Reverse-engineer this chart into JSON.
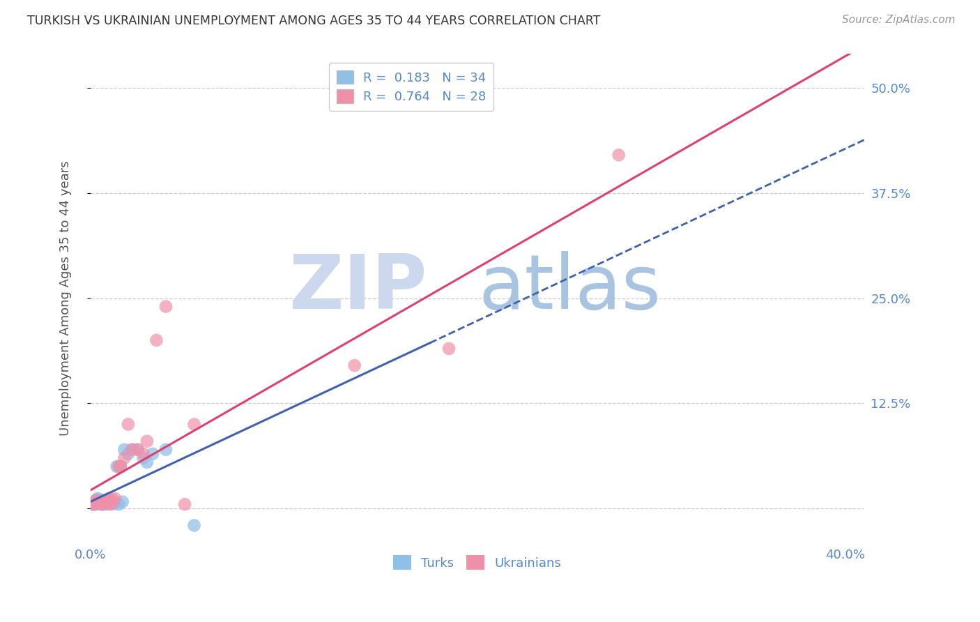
{
  "title": "TURKISH VS UKRAINIAN UNEMPLOYMENT AMONG AGES 35 TO 44 YEARS CORRELATION CHART",
  "source": "Source: ZipAtlas.com",
  "ylabel": "Unemployment Among Ages 35 to 44 years",
  "turks_R": "0.183",
  "turks_N": "34",
  "ukrainians_R": "0.764",
  "ukrainians_N": "28",
  "turks_color": "#90c0e8",
  "ukrainians_color": "#f090a8",
  "trend_turks_color": "#4060b0",
  "trend_ukrainians_color": "#e04070",
  "watermark_zip_color": "#ccd8ee",
  "watermark_atlas_color": "#a8c4e0",
  "tick_color": "#5588cc",
  "grid_color": "#cccccc",
  "xlim": [
    0.0,
    0.41
  ],
  "ylim": [
    -0.04,
    0.54
  ],
  "ytick_vals": [
    0.0,
    0.125,
    0.25,
    0.375,
    0.5
  ],
  "ytick_labels_right": [
    "",
    "12.5%",
    "25.0%",
    "37.5%",
    "50.0%"
  ],
  "xtick_vals": [
    0.0,
    0.1,
    0.2,
    0.3,
    0.4
  ],
  "xtick_labels": [
    "0.0%",
    "",
    "",
    "",
    "40.0%"
  ],
  "turks_x": [
    0.001,
    0.002,
    0.003,
    0.003,
    0.004,
    0.004,
    0.005,
    0.005,
    0.006,
    0.006,
    0.007,
    0.007,
    0.008,
    0.008,
    0.009,
    0.009,
    0.01,
    0.01,
    0.011,
    0.012,
    0.013,
    0.014,
    0.015,
    0.016,
    0.017,
    0.018,
    0.02,
    0.022,
    0.025,
    0.028,
    0.03,
    0.033,
    0.04,
    0.055
  ],
  "turks_y": [
    0.005,
    0.005,
    0.01,
    0.005,
    0.008,
    0.012,
    0.006,
    0.01,
    0.005,
    0.01,
    0.005,
    0.008,
    0.006,
    0.01,
    0.005,
    0.008,
    0.008,
    0.012,
    0.006,
    0.007,
    0.006,
    0.05,
    0.005,
    0.05,
    0.008,
    0.07,
    0.065,
    0.07,
    0.07,
    0.06,
    0.055,
    0.065,
    0.07,
    -0.02
  ],
  "ukrainians_x": [
    0.001,
    0.002,
    0.003,
    0.004,
    0.005,
    0.006,
    0.007,
    0.008,
    0.009,
    0.01,
    0.011,
    0.012,
    0.013,
    0.015,
    0.016,
    0.018,
    0.02,
    0.022,
    0.025,
    0.028,
    0.03,
    0.035,
    0.04,
    0.05,
    0.055,
    0.14,
    0.19,
    0.28
  ],
  "ukrainians_y": [
    0.005,
    0.005,
    0.01,
    0.008,
    0.006,
    0.005,
    0.008,
    0.006,
    0.01,
    0.008,
    0.005,
    0.01,
    0.012,
    0.05,
    0.05,
    0.06,
    0.1,
    0.07,
    0.07,
    0.065,
    0.08,
    0.2,
    0.24,
    0.005,
    0.1,
    0.17,
    0.19,
    0.42
  ]
}
